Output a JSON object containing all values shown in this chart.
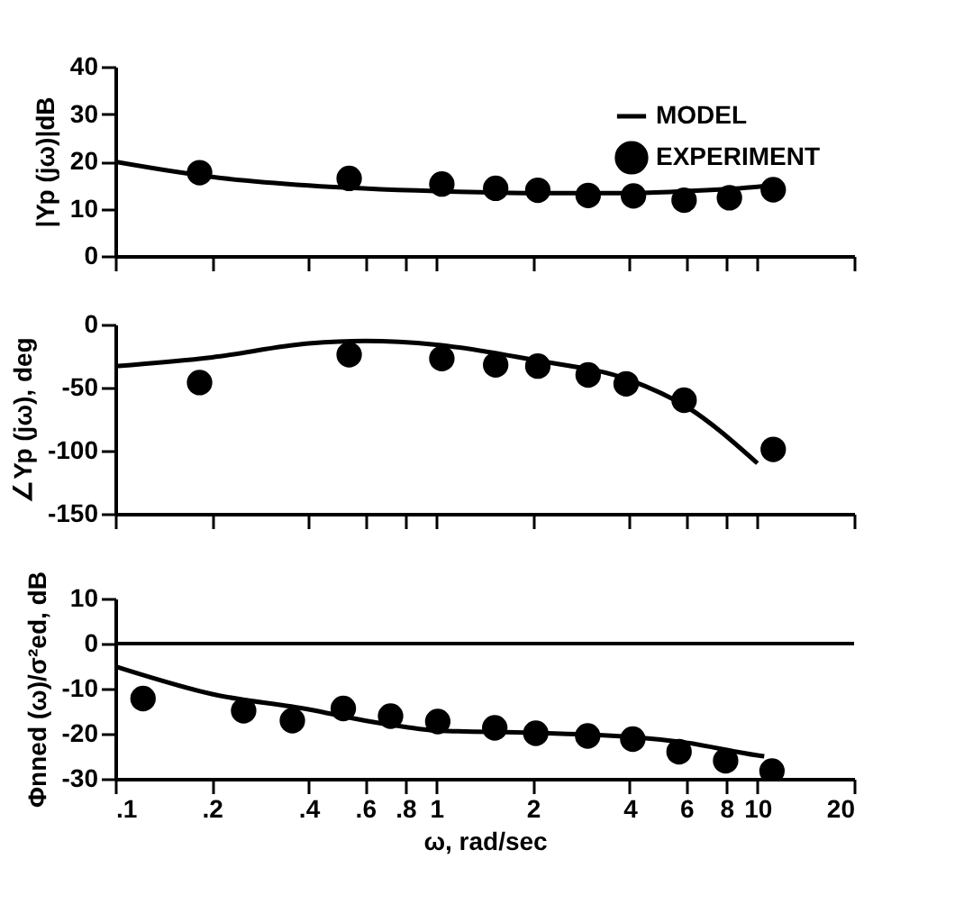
{
  "chart_data": [
    {
      "type": "line",
      "ylabel": "|Yp (jω)|dB",
      "xlim": [
        0.1,
        20
      ],
      "ylim": [
        0,
        40
      ],
      "yticks": [
        0,
        10,
        20,
        30,
        40
      ],
      "log": "x",
      "tick_labels": "y",
      "grid": false,
      "legend": "top right",
      "xticks": [
        {
          "value": 0.1,
          "label": null
        },
        {
          "value": 0.2,
          "label": null
        },
        {
          "value": 0.4,
          "label": null
        },
        {
          "value": 0.6,
          "label": null
        },
        {
          "value": 0.8,
          "label": null
        },
        {
          "value": 1,
          "label": null
        },
        {
          "value": 2,
          "label": null
        },
        {
          "value": 4,
          "label": null
        },
        {
          "value": 6,
          "label": null
        },
        {
          "value": 8,
          "label": null
        },
        {
          "value": 10,
          "label": null
        },
        {
          "value": 20,
          "label": null
        }
      ],
      "series": [
        {
          "name": "MODEL",
          "color": "#000000",
          "line_style": "solid",
          "marker": "none",
          "x": [
            0.1,
            0.2,
            0.4,
            1,
            2,
            4,
            6,
            10,
            11
          ],
          "values": [
            19.9,
            16.7,
            14.9,
            13.7,
            13.3,
            13.3,
            13.7,
            14.6,
            14.9
          ]
        },
        {
          "name": "EXPERIMENT",
          "type": "scatter",
          "color": "#000000",
          "marker": "circle",
          "x": [
            0.183,
            0.535,
            1.04,
            1.53,
            2.07,
            2.97,
            4.11,
            5.91,
            8.18,
            11.2
          ],
          "values": [
            17.6,
            16.4,
            15.2,
            14.3,
            13.9,
            12.8,
            12.7,
            11.8,
            12.3,
            14.0
          ]
        }
      ]
    },
    {
      "type": "line",
      "ylabel": "∠Yp (jω), deg",
      "xlim": [
        0.1,
        20
      ],
      "ylim": [
        -150,
        0
      ],
      "yticks": [
        -150,
        -100,
        -50,
        0
      ],
      "log": "x",
      "tick_labels": "y",
      "grid": false,
      "xticks": [
        {
          "value": 0.1,
          "label": null
        },
        {
          "value": 0.2,
          "label": null
        },
        {
          "value": 0.4,
          "label": null
        },
        {
          "value": 0.6,
          "label": null
        },
        {
          "value": 0.8,
          "label": null
        },
        {
          "value": 1,
          "label": null
        },
        {
          "value": 2,
          "label": null
        },
        {
          "value": 4,
          "label": null
        },
        {
          "value": 6,
          "label": null
        },
        {
          "value": 8,
          "label": null
        },
        {
          "value": 10,
          "label": null
        },
        {
          "value": 20,
          "label": null
        }
      ],
      "series": [
        {
          "color": "#000000",
          "line_style": "solid",
          "marker": "none",
          "x": [
            0.1,
            0.2,
            0.4,
            0.6,
            1,
            2,
            4,
            6,
            10
          ],
          "values": [
            -33,
            -26,
            -15,
            -13,
            -16,
            -28,
            -44,
            -65,
            -110
          ]
        },
        {
          "type": "scatter",
          "color": "#000000",
          "marker": "circle",
          "x": [
            0.183,
            0.535,
            1.04,
            1.53,
            2.07,
            2.97,
            3.9,
            5.91,
            11.2
          ],
          "values": [
            -46,
            -24,
            -27,
            -32,
            -33,
            -40,
            -47,
            -60,
            -99
          ]
        }
      ]
    },
    {
      "type": "line",
      "ylabel": "Φnned (ω)/σ²ed, dB",
      "xlabel": "ω, rad/sec",
      "xlim": [
        0.1,
        20
      ],
      "ylim": [
        -30,
        10
      ],
      "yticks": [
        -30,
        -20,
        -10,
        0,
        10
      ],
      "log": "x",
      "grid": false,
      "xticks": [
        {
          "value": 0.1,
          "label": ".1"
        },
        {
          "value": 0.2,
          "label": ".2"
        },
        {
          "value": 0.4,
          "label": ".4"
        },
        {
          "value": 0.6,
          "label": ".6"
        },
        {
          "value": 0.8,
          "label": ".8"
        },
        1,
        2,
        4,
        6,
        8,
        10,
        20
      ],
      "ref_lines": [
        {
          "axis": "y",
          "value": 0,
          "color": "#000000",
          "line_style": "solid"
        }
      ],
      "series": [
        {
          "color": "#000000",
          "line_style": "solid",
          "marker": "none",
          "x": [
            0.1,
            0.2,
            0.4,
            0.6,
            0.8,
            1,
            2,
            4,
            6,
            10,
            10.5
          ],
          "values": [
            -5.1,
            -11.2,
            -14.6,
            -17.1,
            -18.5,
            -19.3,
            -19.8,
            -20.7,
            -22,
            -24.8,
            -25
          ]
        },
        {
          "type": "scatter",
          "color": "#000000",
          "marker": "circle",
          "x": [
            0.122,
            0.251,
            0.356,
            0.513,
            0.72,
            1.01,
            1.52,
            2.04,
            2.96,
            4.09,
            5.7,
            7.96,
            11.1
          ],
          "values": [
            -12.2,
            -14.9,
            -17.1,
            -14.4,
            -16.1,
            -17.3,
            -18.7,
            -19.9,
            -20.5,
            -21.2,
            -24.0,
            -26.0,
            -28.3
          ]
        }
      ]
    }
  ]
}
